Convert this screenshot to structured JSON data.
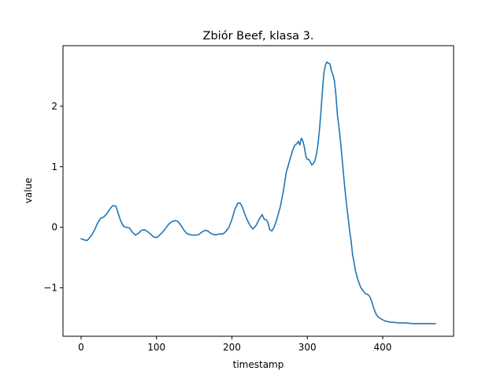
{
  "chart_data": {
    "type": "line",
    "title": "Zbiór Beef, klasa 3.",
    "xlabel": "timestamp",
    "ylabel": "value",
    "xlim": [
      -24,
      494
    ],
    "ylim": [
      -1.8,
      3.0
    ],
    "xticks": [
      0,
      100,
      200,
      300,
      400
    ],
    "yticks": [
      2,
      1,
      0,
      -1
    ],
    "ytick_labels": [
      "2",
      "1",
      "0",
      "−1"
    ],
    "grid": false,
    "series": [
      {
        "color": "#1f77b4",
        "x": [
          0,
          5,
          8,
          10,
          14,
          18,
          22,
          26,
          30,
          34,
          38,
          42,
          46,
          48,
          52,
          56,
          60,
          64,
          68,
          72,
          76,
          80,
          84,
          88,
          92,
          96,
          100,
          104,
          108,
          112,
          116,
          120,
          124,
          128,
          132,
          136,
          140,
          144,
          148,
          152,
          156,
          160,
          164,
          168,
          172,
          176,
          180,
          184,
          188,
          192,
          196,
          200,
          204,
          208,
          211,
          214,
          217,
          220,
          224,
          228,
          232,
          236,
          240,
          243,
          246,
          248,
          250,
          253,
          256,
          260,
          264,
          268,
          272,
          276,
          280,
          283,
          286,
          288,
          290,
          292,
          294,
          296,
          298,
          300,
          302,
          304,
          306,
          308,
          310,
          312,
          314,
          316,
          318,
          320,
          322,
          324,
          326,
          328,
          330,
          332,
          334,
          336,
          338,
          340,
          342,
          344,
          346,
          348,
          350,
          352,
          354,
          356,
          358,
          360,
          362,
          364,
          366,
          368,
          370,
          372,
          374,
          376,
          378,
          380,
          382,
          384,
          386,
          388,
          390,
          392,
          394,
          396,
          400,
          404,
          408,
          412,
          416,
          420,
          430,
          440,
          450,
          460,
          470
        ],
        "y": [
          -0.19,
          -0.21,
          -0.22,
          -0.19,
          -0.13,
          -0.04,
          0.07,
          0.15,
          0.17,
          0.22,
          0.3,
          0.36,
          0.35,
          0.28,
          0.12,
          0.02,
          0.0,
          -0.01,
          -0.08,
          -0.13,
          -0.1,
          -0.05,
          -0.04,
          -0.07,
          -0.11,
          -0.16,
          -0.17,
          -0.13,
          -0.08,
          -0.02,
          0.05,
          0.09,
          0.11,
          0.1,
          0.04,
          -0.04,
          -0.1,
          -0.12,
          -0.13,
          -0.13,
          -0.12,
          -0.08,
          -0.05,
          -0.06,
          -0.1,
          -0.12,
          -0.12,
          -0.11,
          -0.11,
          -0.07,
          0.0,
          0.13,
          0.3,
          0.4,
          0.4,
          0.33,
          0.22,
          0.13,
          0.03,
          -0.03,
          0.03,
          0.13,
          0.21,
          0.13,
          0.12,
          0.07,
          -0.04,
          -0.06,
          0.0,
          0.15,
          0.33,
          0.58,
          0.9,
          1.08,
          1.25,
          1.35,
          1.38,
          1.42,
          1.36,
          1.47,
          1.43,
          1.33,
          1.18,
          1.12,
          1.12,
          1.08,
          1.03,
          1.05,
          1.1,
          1.2,
          1.35,
          1.6,
          1.9,
          2.25,
          2.55,
          2.68,
          2.73,
          2.71,
          2.7,
          2.58,
          2.52,
          2.42,
          2.18,
          1.85,
          1.65,
          1.42,
          1.15,
          0.88,
          0.62,
          0.38,
          0.18,
          -0.05,
          -0.22,
          -0.45,
          -0.58,
          -0.72,
          -0.82,
          -0.9,
          -0.97,
          -1.02,
          -1.05,
          -1.08,
          -1.1,
          -1.11,
          -1.13,
          -1.18,
          -1.25,
          -1.33,
          -1.4,
          -1.45,
          -1.48,
          -1.5,
          -1.53,
          -1.55,
          -1.56,
          -1.57,
          -1.57,
          -1.58,
          -1.58,
          -1.59,
          -1.59,
          -1.59,
          -1.59
        ]
      }
    ]
  }
}
